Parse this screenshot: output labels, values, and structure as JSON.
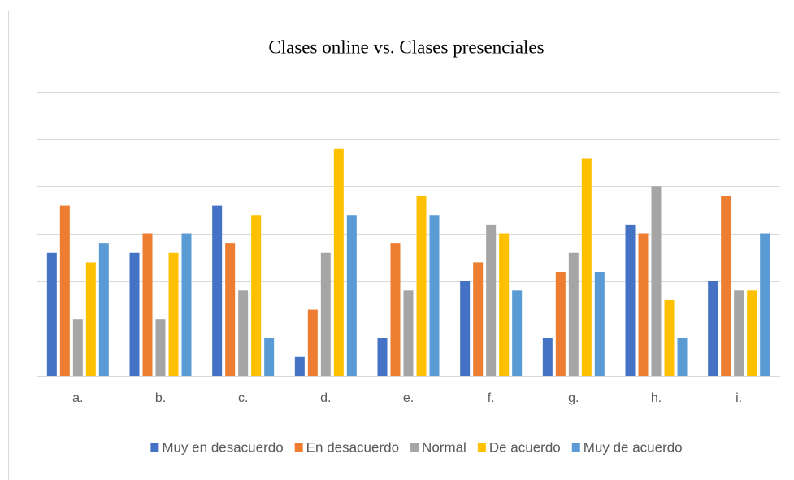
{
  "chart_data": {
    "type": "bar",
    "title": "Clases online vs. Clases presenciales",
    "categories": [
      "a.",
      "b.",
      "c.",
      "d.",
      "e.",
      "f.",
      "g.",
      "h.",
      "i."
    ],
    "series": [
      {
        "name": "Muy en desacuerdo",
        "color": "#4472c4",
        "values": [
          13,
          13,
          18,
          2,
          4,
          10,
          4,
          16,
          10
        ]
      },
      {
        "name": "En desacuerdo",
        "color": "#ed7d31",
        "values": [
          18,
          15,
          14,
          7,
          14,
          12,
          11,
          15,
          19
        ]
      },
      {
        "name": "Normal",
        "color": "#a5a5a5",
        "values": [
          6,
          6,
          9,
          13,
          9,
          16,
          13,
          20,
          9
        ]
      },
      {
        "name": "De acuerdo",
        "color": "#ffc000",
        "values": [
          12,
          13,
          17,
          24,
          19,
          15,
          23,
          8,
          9
        ]
      },
      {
        "name": "Muy de acuerdo",
        "color": "#5b9bd5",
        "values": [
          14,
          15,
          4,
          17,
          17,
          9,
          11,
          4,
          15
        ]
      }
    ],
    "ylim": [
      0,
      30
    ],
    "yticks": [
      0,
      5,
      10,
      15,
      20,
      25,
      30
    ],
    "grid": true,
    "legend": "bottom"
  }
}
